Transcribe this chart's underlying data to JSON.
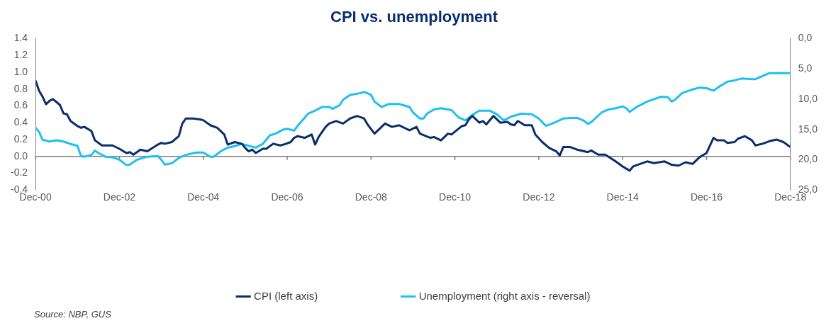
{
  "chart_data": {
    "type": "line",
    "title": "CPI vs. unemployment",
    "xlim": [
      "2000-12",
      "2018-12"
    ],
    "xticks": [
      {
        "value": "2000-12",
        "label": "Dec-00"
      },
      {
        "value": "2002-12",
        "label": "Dec-02"
      },
      {
        "value": "2004-12",
        "label": "Dec-04"
      },
      {
        "value": "2006-12",
        "label": "Dec-06"
      },
      {
        "value": "2008-12",
        "label": "Dec-08"
      },
      {
        "value": "2010-12",
        "label": "Dec-10"
      },
      {
        "value": "2012-12",
        "label": "Dec-12"
      },
      {
        "value": "2014-12",
        "label": "Dec-14"
      },
      {
        "value": "2016-12",
        "label": "Dec-16"
      },
      {
        "value": "2018-12",
        "label": "Dec-18"
      }
    ],
    "ylim": [
      -0.4,
      1.4
    ],
    "yticks": [
      -0.4,
      -0.2,
      {
        "value": 0,
        "label": "0.0"
      },
      0.2,
      0.4,
      0.6,
      0.8,
      {
        "value": 1,
        "label": "1.0"
      },
      1.2,
      1.4
    ],
    "y2lim": [
      25,
      0
    ],
    "y2ticks": [
      {
        "value": 0,
        "label": "0,0"
      },
      {
        "value": 5,
        "label": "5,0"
      },
      {
        "value": 10,
        "label": "10,0"
      },
      {
        "value": 15,
        "label": "15,0"
      },
      {
        "value": 20,
        "label": "20,0"
      },
      {
        "value": 25,
        "label": "25,0"
      }
    ],
    "ref_lines": [
      {
        "axis": "y",
        "value": 0,
        "color": "#808080"
      }
    ],
    "grid": false,
    "legend": "bottom",
    "marker": "none",
    "line_style": "solid",
    "annotations": [
      "Source: NBP, GUS"
    ],
    "series": [
      {
        "name": "CPI (left axis)",
        "color": "#0a2d6e",
        "x": [
          "2000-12",
          "2001-01",
          "2001-02",
          "2001-03",
          "2001-04",
          "2001-05",
          "2001-07",
          "2001-08",
          "2001-09",
          "2001-10",
          "2001-12",
          "2002-01",
          "2002-02",
          "2002-04",
          "2002-05",
          "2002-07",
          "2002-10",
          "2002-12",
          "2003-02",
          "2003-03",
          "2003-04",
          "2003-06",
          "2003-08",
          "2003-11",
          "2003-12",
          "2004-01",
          "2004-03",
          "2004-05",
          "2004-06",
          "2004-07",
          "2004-09",
          "2004-11",
          "2004-12",
          "2005-02",
          "2005-04",
          "2005-06",
          "2005-07",
          "2005-09",
          "2005-11",
          "2005-12",
          "2006-01",
          "2006-02",
          "2006-03",
          "2006-05",
          "2006-06",
          "2006-08",
          "2006-10",
          "2006-11",
          "2007-01",
          "2007-02",
          "2007-03",
          "2007-05",
          "2007-07",
          "2007-08",
          "2007-09",
          "2007-11",
          "2007-12",
          "2008-02",
          "2008-04",
          "2008-06",
          "2008-08",
          "2008-10",
          "2008-11",
          "2009-01",
          "2009-03",
          "2009-04",
          "2009-06",
          "2009-08",
          "2009-11",
          "2010-01",
          "2010-02",
          "2010-05",
          "2010-06",
          "2010-08",
          "2010-10",
          "2010-11",
          "2011-02",
          "2011-03",
          "2011-04",
          "2011-05",
          "2011-07",
          "2011-08",
          "2011-09",
          "2011-11",
          "2012-01",
          "2012-03",
          "2012-04",
          "2012-05",
          "2012-06",
          "2012-08",
          "2012-10",
          "2012-11",
          "2013-01",
          "2013-03",
          "2013-05",
          "2013-06",
          "2013-07",
          "2013-09",
          "2013-11",
          "2014-01",
          "2014-02",
          "2014-03",
          "2014-05",
          "2014-07",
          "2014-10",
          "2014-12",
          "2015-02",
          "2015-03",
          "2015-05",
          "2015-07",
          "2015-09",
          "2015-12",
          "2016-02",
          "2016-04",
          "2016-06",
          "2016-08",
          "2016-10",
          "2016-12",
          "2017-02",
          "2017-03",
          "2017-05",
          "2017-06",
          "2017-08",
          "2017-09",
          "2017-11",
          "2018-01",
          "2018-02",
          "2018-04",
          "2018-06",
          "2018-08",
          "2018-10",
          "2018-12"
        ],
        "values": [
          0.9,
          0.78,
          0.71,
          0.62,
          0.66,
          0.68,
          0.61,
          0.51,
          0.5,
          0.42,
          0.36,
          0.34,
          0.35,
          0.3,
          0.19,
          0.13,
          0.13,
          0.09,
          0.04,
          0.05,
          0.02,
          0.08,
          0.06,
          0.14,
          0.16,
          0.15,
          0.17,
          0.24,
          0.39,
          0.45,
          0.45,
          0.44,
          0.43,
          0.37,
          0.34,
          0.26,
          0.14,
          0.17,
          0.15,
          0.1,
          0.06,
          0.08,
          0.04,
          0.09,
          0.09,
          0.15,
          0.13,
          0.14,
          0.17,
          0.22,
          0.24,
          0.22,
          0.26,
          0.14,
          0.23,
          0.35,
          0.39,
          0.42,
          0.39,
          0.45,
          0.48,
          0.45,
          0.38,
          0.27,
          0.35,
          0.39,
          0.35,
          0.37,
          0.31,
          0.35,
          0.27,
          0.22,
          0.23,
          0.19,
          0.27,
          0.26,
          0.36,
          0.37,
          0.44,
          0.48,
          0.4,
          0.42,
          0.38,
          0.48,
          0.4,
          0.41,
          0.38,
          0.37,
          0.42,
          0.37,
          0.37,
          0.26,
          0.17,
          0.1,
          0.06,
          0.01,
          0.11,
          0.11,
          0.08,
          0.06,
          0.05,
          0.07,
          0.02,
          0.02,
          -0.06,
          -0.12,
          -0.17,
          -0.12,
          -0.09,
          -0.06,
          -0.08,
          -0.06,
          -0.1,
          -0.11,
          -0.07,
          -0.09,
          -0.01,
          0.04,
          0.22,
          0.19,
          0.19,
          0.16,
          0.17,
          0.21,
          0.24,
          0.19,
          0.13,
          0.15,
          0.18,
          0.2,
          0.17,
          0.11
        ]
      },
      {
        "name": "Unemployment (right axis - reversal)",
        "color": "#1ec0f0",
        "axis": "y2",
        "x": [
          "2000-12",
          "2001-01",
          "2001-02",
          "2001-04",
          "2001-06",
          "2001-08",
          "2001-10",
          "2001-12",
          "2002-01",
          "2002-02",
          "2002-04",
          "2002-05",
          "2002-06",
          "2002-08",
          "2002-10",
          "2002-12",
          "2003-02",
          "2003-03",
          "2003-05",
          "2003-08",
          "2003-11",
          "2003-12",
          "2004-01",
          "2004-03",
          "2004-05",
          "2004-07",
          "2004-10",
          "2004-12",
          "2005-02",
          "2005-03",
          "2005-05",
          "2005-07",
          "2005-08",
          "2005-11",
          "2006-01",
          "2006-03",
          "2006-05",
          "2006-07",
          "2006-09",
          "2006-11",
          "2006-12",
          "2007-02",
          "2007-03",
          "2007-06",
          "2007-08",
          "2007-10",
          "2007-12",
          "2008-01",
          "2008-03",
          "2008-04",
          "2008-06",
          "2008-09",
          "2008-10",
          "2008-12",
          "2009-01",
          "2009-03",
          "2009-05",
          "2009-08",
          "2009-11",
          "2009-12",
          "2010-02",
          "2010-03",
          "2010-04",
          "2010-06",
          "2010-08",
          "2010-11",
          "2011-01",
          "2011-03",
          "2011-05",
          "2011-07",
          "2011-10",
          "2011-12",
          "2012-02",
          "2012-04",
          "2012-07",
          "2012-10",
          "2012-12",
          "2013-02",
          "2013-04",
          "2013-07",
          "2013-09",
          "2013-11",
          "2014-01",
          "2014-02",
          "2014-03",
          "2014-06",
          "2014-08",
          "2014-10",
          "2014-12",
          "2015-01",
          "2015-02",
          "2015-04",
          "2015-07",
          "2015-09",
          "2015-11",
          "2016-01",
          "2016-02",
          "2016-03",
          "2016-05",
          "2016-08",
          "2016-10",
          "2016-12",
          "2017-02",
          "2017-04",
          "2017-06",
          "2017-08",
          "2017-10",
          "2018-01",
          "2018-02",
          "2018-04",
          "2018-06",
          "2018-08",
          "2018-12"
        ],
        "values": [
          14.7,
          15.4,
          16.7,
          17.0,
          16.8,
          17.0,
          17.4,
          17.7,
          19.4,
          19.5,
          19.2,
          18.5,
          18.9,
          19.5,
          19.6,
          20.0,
          20.9,
          20.8,
          20.0,
          19.5,
          19.4,
          20.0,
          20.8,
          20.6,
          19.7,
          19.2,
          18.8,
          18.8,
          19.5,
          19.5,
          18.6,
          18.0,
          17.9,
          17.4,
          17.7,
          18.0,
          17.4,
          16.0,
          15.6,
          15.0,
          14.9,
          15.2,
          14.4,
          12.4,
          11.9,
          11.3,
          11.3,
          11.6,
          11.0,
          10.1,
          9.3,
          9.0,
          8.8,
          9.3,
          10.4,
          11.3,
          10.8,
          10.8,
          11.3,
          12.2,
          13.2,
          13.2,
          12.4,
          11.7,
          11.5,
          11.8,
          13.0,
          13.5,
          12.6,
          11.9,
          11.9,
          12.5,
          13.5,
          12.9,
          12.4,
          12.5,
          13.2,
          14.4,
          14.0,
          13.2,
          13.1,
          13.1,
          13.6,
          14.1,
          13.8,
          12.2,
          11.7,
          11.5,
          11.2,
          11.5,
          12.1,
          11.3,
          10.4,
          10.0,
          9.6,
          9.7,
          10.4,
          10.1,
          9.0,
          8.4,
          8.1,
          8.2,
          8.6,
          7.8,
          7.1,
          6.9,
          6.6,
          6.7,
          6.7,
          6.2,
          5.7,
          5.7,
          5.7
        ]
      }
    ]
  }
}
